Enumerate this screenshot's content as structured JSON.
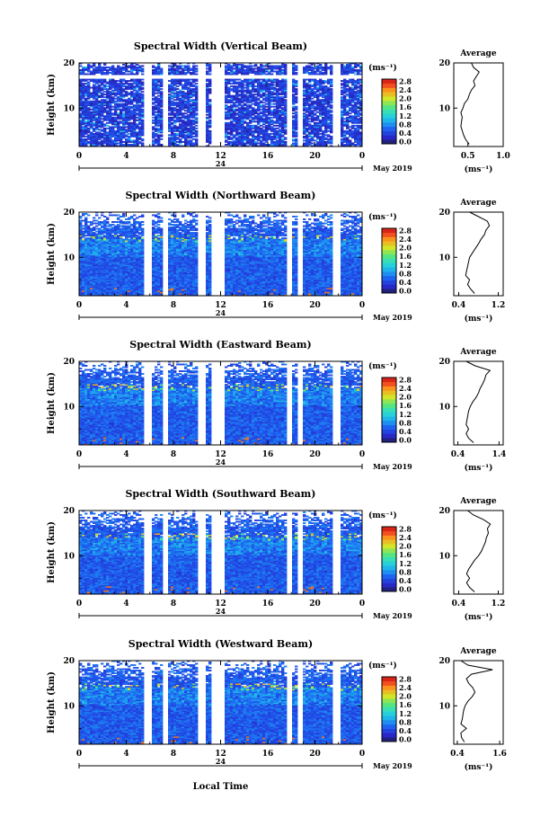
{
  "figure": {
    "x_axis_label": "Local Time",
    "date_label": "May 2019",
    "date_day": "24",
    "colorbar_unit": "(ms⁻¹)",
    "colorbar_ticks": [
      "0.0",
      "0.4",
      "0.8",
      "1.2",
      "1.6",
      "2.0",
      "2.4",
      "2.8"
    ],
    "average_title": "Average",
    "average_xlabel": "(ms⁻¹)"
  },
  "chart_data": [
    {
      "type": "heatmap",
      "title": "Spectral Width (Vertical Beam)",
      "xlabel": "Local Time",
      "ylabel": "Height (km)",
      "x_ticks": [
        "0",
        "4",
        "8",
        "12",
        "16",
        "20",
        "0"
      ],
      "y_ticks": [
        "10",
        "20"
      ],
      "xlim": [
        0,
        24
      ],
      "ylim": [
        1.5,
        20
      ],
      "colorbar": {
        "label": "(ms⁻¹)",
        "range": [
          0,
          3.0
        ],
        "ticks": [
          0.0,
          0.4,
          0.8,
          1.2,
          1.6,
          2.0,
          2.4,
          2.8
        ]
      },
      "data_gaps_hours": [
        [
          5.7,
          5.95
        ],
        [
          7.1,
          7.35
        ],
        [
          10.2,
          10.7
        ],
        [
          11.2,
          12.2
        ],
        [
          17.6,
          17.85
        ],
        [
          18.6,
          18.85
        ],
        [
          21.7,
          21.95
        ]
      ],
      "typical_width_ms": 0.4,
      "average_profile": {
        "xlim": [
          0.3,
          1.0
        ],
        "x_ticks": [
          "0.5",
          "1.0"
        ],
        "height_km": [
          2,
          3,
          4,
          5,
          6,
          7,
          8,
          9,
          10,
          11,
          12,
          13,
          14,
          15,
          16,
          17,
          18,
          19,
          20
        ],
        "width_ms": [
          0.52,
          0.47,
          0.44,
          0.42,
          0.4,
          0.41,
          0.42,
          0.4,
          0.43,
          0.45,
          0.5,
          0.52,
          0.55,
          0.6,
          0.58,
          0.62,
          0.66,
          0.58,
          0.55
        ]
      }
    },
    {
      "type": "heatmap",
      "title": "Spectral Width (Northward Beam)",
      "xlabel": "Local Time",
      "ylabel": "Height (km)",
      "x_ticks": [
        "0",
        "4",
        "8",
        "12",
        "16",
        "20",
        "0"
      ],
      "y_ticks": [
        "10",
        "20"
      ],
      "xlim": [
        0,
        24
      ],
      "ylim": [
        1.5,
        20
      ],
      "colorbar": {
        "label": "(ms⁻¹)",
        "range": [
          0,
          3.0
        ],
        "ticks": [
          0.0,
          0.4,
          0.8,
          1.2,
          1.6,
          2.0,
          2.4,
          2.8
        ]
      },
      "data_gaps_hours": [
        [
          5.7,
          5.95
        ],
        [
          7.1,
          7.35
        ],
        [
          10.2,
          10.7
        ],
        [
          11.2,
          12.2
        ],
        [
          17.6,
          17.85
        ],
        [
          18.6,
          18.85
        ],
        [
          21.7,
          21.95
        ]
      ],
      "typical_width_ms": 0.6,
      "average_profile": {
        "xlim": [
          0.3,
          1.3
        ],
        "x_ticks": [
          "0.4",
          "1.2"
        ],
        "height_km": [
          2,
          3,
          4,
          5,
          6,
          7,
          8,
          9,
          10,
          11,
          12,
          13,
          14,
          15,
          16,
          17,
          18,
          19,
          20
        ],
        "width_ms": [
          0.72,
          0.64,
          0.58,
          0.62,
          0.54,
          0.56,
          0.58,
          0.6,
          0.62,
          0.68,
          0.74,
          0.8,
          0.85,
          0.92,
          0.95,
          1.02,
          0.98,
          0.8,
          0.62
        ]
      }
    },
    {
      "type": "heatmap",
      "title": "Spectral Width (Eastward Beam)",
      "xlabel": "Local Time",
      "ylabel": "Height (km)",
      "x_ticks": [
        "0",
        "4",
        "8",
        "12",
        "16",
        "20",
        "0"
      ],
      "y_ticks": [
        "10",
        "20"
      ],
      "xlim": [
        0,
        24
      ],
      "ylim": [
        1.5,
        20
      ],
      "colorbar": {
        "label": "(ms⁻¹)",
        "range": [
          0,
          3.0
        ],
        "ticks": [
          0.0,
          0.4,
          0.8,
          1.2,
          1.6,
          2.0,
          2.4,
          2.8
        ]
      },
      "data_gaps_hours": [
        [
          5.7,
          5.95
        ],
        [
          7.1,
          7.35
        ],
        [
          10.2,
          10.7
        ],
        [
          11.2,
          12.2
        ],
        [
          17.6,
          17.85
        ],
        [
          18.6,
          18.85
        ],
        [
          21.7,
          21.95
        ]
      ],
      "typical_width_ms": 0.6,
      "average_profile": {
        "xlim": [
          0.3,
          1.5
        ],
        "x_ticks": [
          "0.4",
          "1.4"
        ],
        "height_km": [
          2,
          3,
          4,
          5,
          6,
          7,
          8,
          9,
          10,
          11,
          12,
          13,
          14,
          15,
          16,
          17,
          18,
          19,
          20
        ],
        "width_ms": [
          0.78,
          0.66,
          0.6,
          0.66,
          0.6,
          0.62,
          0.64,
          0.66,
          0.7,
          0.76,
          0.84,
          0.9,
          0.94,
          1.0,
          1.05,
          1.08,
          1.18,
          0.82,
          0.6
        ]
      }
    },
    {
      "type": "heatmap",
      "title": "Spectral Width (Southward Beam)",
      "xlabel": "Local Time",
      "ylabel": "Height (km)",
      "x_ticks": [
        "0",
        "4",
        "8",
        "12",
        "16",
        "20",
        "0"
      ],
      "y_ticks": [
        "10",
        "20"
      ],
      "xlim": [
        0,
        24
      ],
      "ylim": [
        1.5,
        20
      ],
      "colorbar": {
        "label": "(ms⁻¹)",
        "range": [
          0,
          3.0
        ],
        "ticks": [
          0.0,
          0.4,
          0.8,
          1.2,
          1.6,
          2.0,
          2.4,
          2.8
        ]
      },
      "data_gaps_hours": [
        [
          5.7,
          5.95
        ],
        [
          7.1,
          7.35
        ],
        [
          10.2,
          10.7
        ],
        [
          11.2,
          12.2
        ],
        [
          17.6,
          17.85
        ],
        [
          18.6,
          18.85
        ],
        [
          21.7,
          21.95
        ]
      ],
      "typical_width_ms": 0.6,
      "average_profile": {
        "xlim": [
          0.3,
          1.3
        ],
        "x_ticks": [
          "0.4",
          "1.2"
        ],
        "height_km": [
          2,
          3,
          4,
          5,
          6,
          7,
          8,
          9,
          10,
          11,
          12,
          13,
          14,
          15,
          16,
          17,
          18,
          19,
          20
        ],
        "width_ms": [
          0.72,
          0.62,
          0.56,
          0.62,
          0.56,
          0.6,
          0.66,
          0.72,
          0.8,
          0.86,
          0.9,
          0.94,
          0.96,
          1.0,
          0.98,
          1.04,
          0.9,
          0.7,
          0.58
        ]
      }
    },
    {
      "type": "heatmap",
      "title": "Spectral Width (Westward Beam)",
      "xlabel": "Local Time",
      "ylabel": "Height (km)",
      "x_ticks": [
        "0",
        "4",
        "8",
        "12",
        "16",
        "20",
        "0"
      ],
      "y_ticks": [
        "10",
        "20"
      ],
      "xlim": [
        0,
        24
      ],
      "ylim": [
        1.5,
        20
      ],
      "colorbar": {
        "label": "(ms⁻¹)",
        "range": [
          0,
          3.0
        ],
        "ticks": [
          0.0,
          0.4,
          0.8,
          1.2,
          1.6,
          2.0,
          2.4,
          2.8
        ]
      },
      "data_gaps_hours": [
        [
          5.7,
          5.95
        ],
        [
          7.1,
          7.35
        ],
        [
          10.2,
          10.7
        ],
        [
          11.2,
          12.2
        ],
        [
          17.6,
          17.85
        ],
        [
          18.6,
          18.85
        ],
        [
          21.7,
          21.95
        ]
      ],
      "typical_width_ms": 0.6,
      "average_profile": {
        "xlim": [
          0.3,
          1.7
        ],
        "x_ticks": [
          "0.4",
          "1.6"
        ],
        "height_km": [
          2,
          3,
          4,
          5,
          6,
          7,
          8,
          9,
          10,
          11,
          12,
          13,
          14,
          15,
          16,
          17,
          18,
          19,
          20
        ],
        "width_ms": [
          0.6,
          0.52,
          0.5,
          0.66,
          0.5,
          0.54,
          0.56,
          0.58,
          0.62,
          0.7,
          0.82,
          0.9,
          0.84,
          0.72,
          0.66,
          0.8,
          1.4,
          0.7,
          0.5
        ]
      }
    }
  ]
}
